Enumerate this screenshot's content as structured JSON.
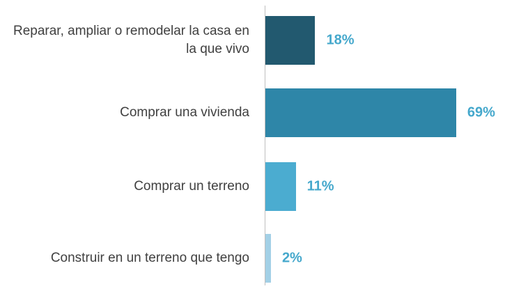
{
  "chart_data": {
    "type": "bar",
    "orientation": "horizontal",
    "categories": [
      "Reparar, ampliar o remodelar la casa en la que vivo",
      "Comprar una vivienda",
      "Comprar un terreno",
      "Construir en un terreno que tengo"
    ],
    "values": [
      18,
      69,
      11,
      2
    ],
    "value_labels": [
      "18%",
      "69%",
      "11%",
      "2%"
    ],
    "colors": [
      "#22596f",
      "#2e86a8",
      "#4bacd0",
      "#a3d0e6"
    ]
  }
}
